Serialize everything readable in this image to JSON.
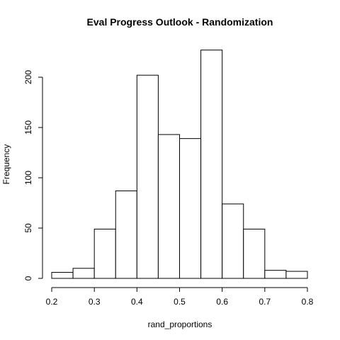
{
  "chart_data": {
    "type": "histogram",
    "title": "Eval Progress Outlook - Randomization",
    "x_label": "rand_proportions",
    "y_label": "Frequency",
    "bins": [
      0.2,
      0.25,
      0.3,
      0.35,
      0.4,
      0.45,
      0.5,
      0.55,
      0.6,
      0.65,
      0.7,
      0.75,
      0.8
    ],
    "counts": [
      6,
      10,
      49,
      87,
      202,
      143,
      139,
      227,
      74,
      49,
      8,
      7
    ],
    "color": "#ffffff",
    "xlim": [
      0.2,
      0.8
    ],
    "xticks": [
      0.2,
      0.3,
      0.4,
      0.5,
      0.6,
      0.7,
      0.8
    ],
    "ylim": [
      0,
      230
    ],
    "yticks": [
      0,
      50,
      100,
      150,
      200
    ]
  }
}
